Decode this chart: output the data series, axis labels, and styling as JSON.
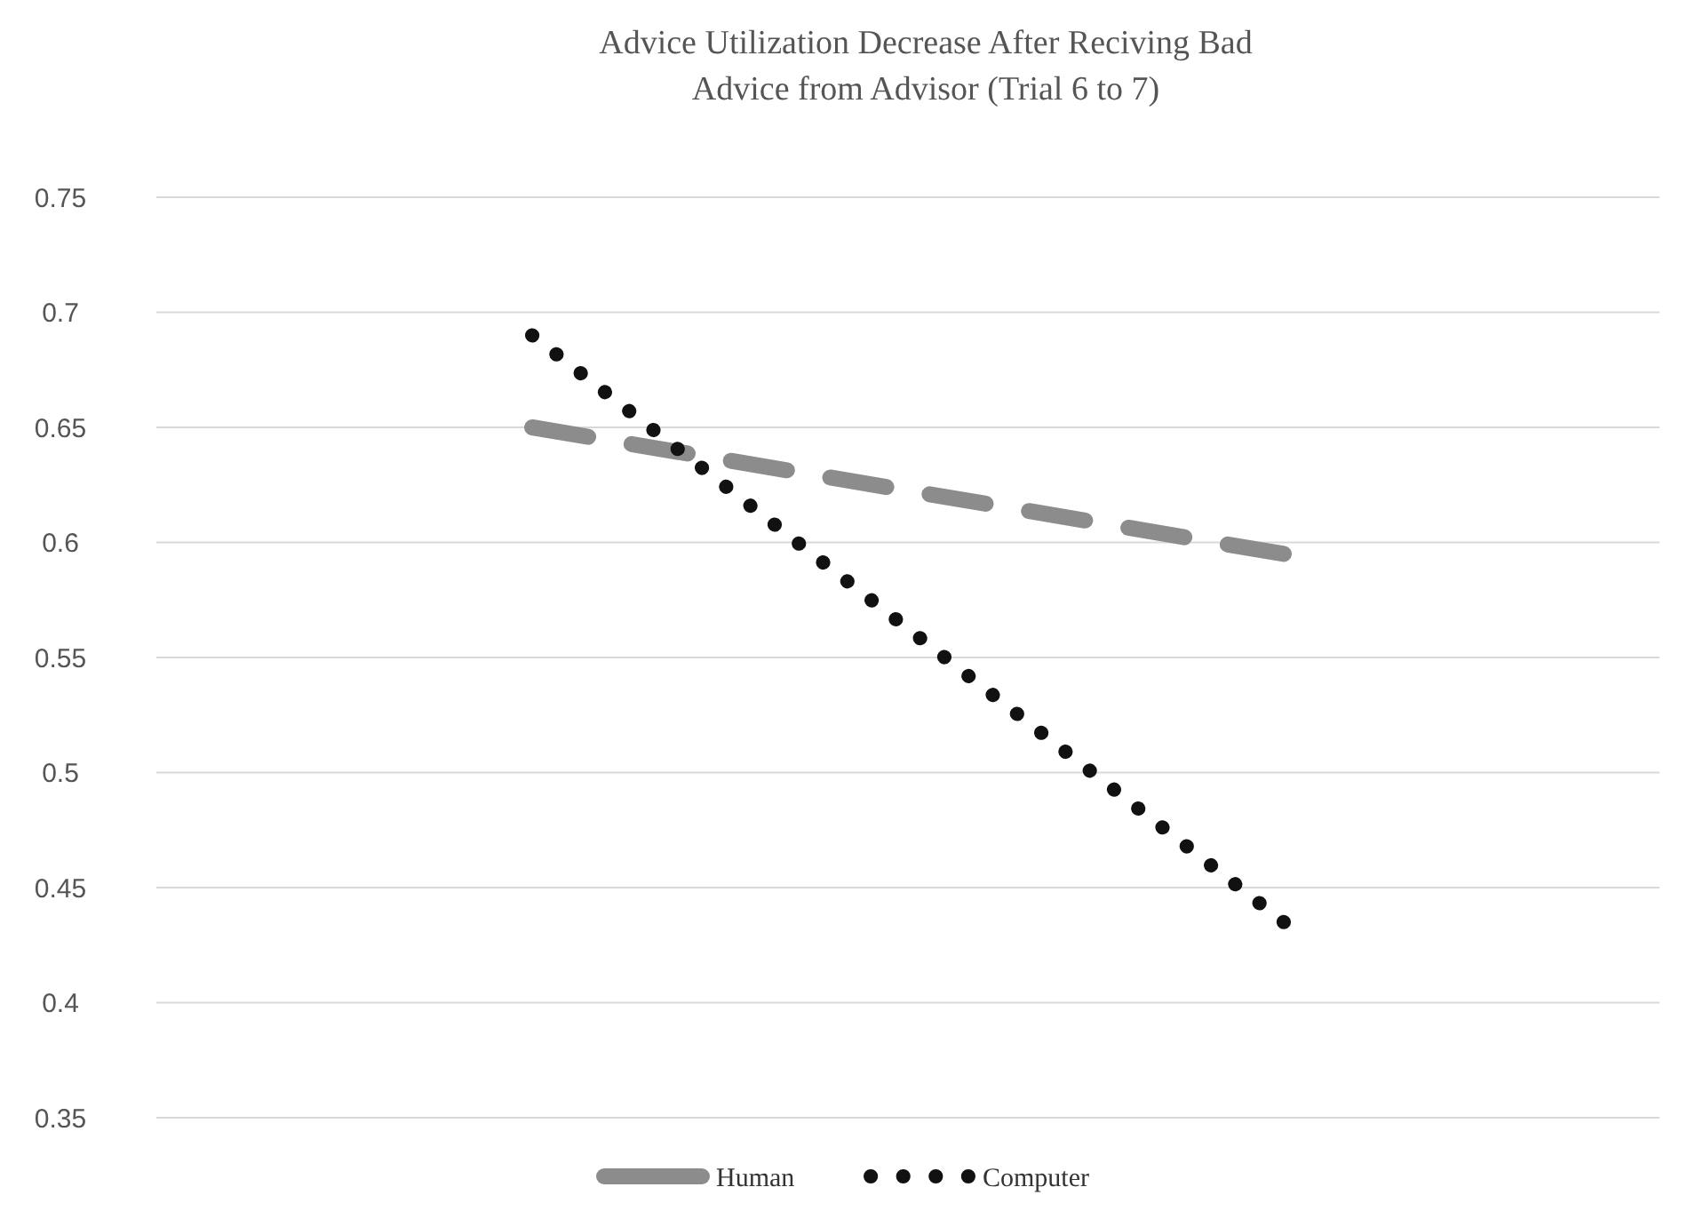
{
  "chart_data": {
    "type": "line",
    "title": "Advice Utilization Decrease After Reciving Bad Advice from Advisor (Trial 6 to 7)",
    "categories": [
      null,
      null
    ],
    "series": [
      {
        "name": "Human",
        "color": "#8c8c8c",
        "values": [
          0.65,
          0.595
        ],
        "line_style": "dashed"
      },
      {
        "name": "Computer",
        "color": "#111111",
        "values": [
          0.69,
          0.435
        ],
        "line_style": "dotted"
      }
    ],
    "ylim": [
      0.35,
      0.75
    ],
    "yticks": [
      0.35,
      0.4,
      0.45,
      0.5,
      0.55,
      0.6,
      0.65,
      0.7,
      0.75
    ],
    "grid": "y",
    "legend": "bottom"
  }
}
